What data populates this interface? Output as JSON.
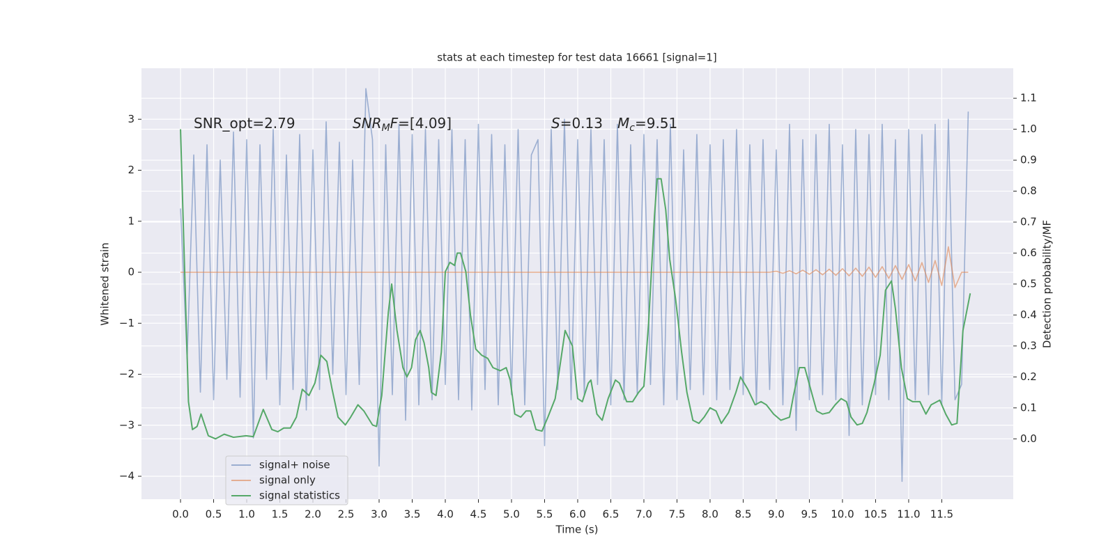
{
  "chart_data": {
    "type": "line",
    "title": "stats at each timestep for test data 16661 [signal=1]",
    "xlabel": "Time (s)",
    "ylabel": "Whitened strain",
    "y2label": "Detection probability/MF",
    "annotations": [
      [
        "SNR_opt=2.79"
      ],
      [
        "SNR",
        "M",
        "F",
        "=[4.09]"
      ],
      [
        "S",
        "=0.13"
      ],
      [
        "M",
        "c",
        "=9.51"
      ]
    ],
    "x": [
      0.0,
      0.1,
      0.2,
      0.3,
      0.4,
      0.5,
      0.6,
      0.7,
      0.8,
      0.9,
      1.0,
      1.1,
      1.2,
      1.3,
      1.4,
      1.5,
      1.6,
      1.7,
      1.8,
      1.9,
      2.0,
      2.1,
      2.2,
      2.3,
      2.4,
      2.5,
      2.6,
      2.7,
      2.8,
      2.9,
      3.0,
      3.1,
      3.2,
      3.3,
      3.4,
      3.5,
      3.6,
      3.7,
      3.8,
      3.9,
      4.0,
      4.1,
      4.2,
      4.3,
      4.4,
      4.5,
      4.6,
      4.7,
      4.8,
      4.9,
      5.0,
      5.1,
      5.2,
      5.3,
      5.4,
      5.5,
      5.6,
      5.7,
      5.8,
      5.9,
      6.0,
      6.1,
      6.2,
      6.3,
      6.4,
      6.5,
      6.6,
      6.7,
      6.8,
      6.9,
      7.0,
      7.1,
      7.2,
      7.3,
      7.4,
      7.5,
      7.6,
      7.7,
      7.8,
      7.9,
      8.0,
      8.1,
      8.2,
      8.3,
      8.4,
      8.5,
      8.6,
      8.7,
      8.8,
      8.9,
      9.0,
      9.1,
      9.2,
      9.3,
      9.4,
      9.5,
      9.6,
      9.7,
      9.8,
      9.9,
      10.0,
      10.1,
      10.2,
      10.3,
      10.4,
      10.5,
      10.6,
      10.7,
      10.8,
      10.9,
      11.0,
      11.1,
      11.2,
      11.3,
      11.4,
      11.5,
      11.6,
      11.7,
      11.8,
      11.9
    ],
    "series": [
      {
        "name": "signal+ noise",
        "color": "#4c72b0",
        "opacity": 0.5,
        "values": [
          1.25,
          -1.7,
          2.3,
          -2.35,
          2.5,
          -2.5,
          2.2,
          -2.1,
          2.75,
          -2.45,
          2.6,
          -3.25,
          2.5,
          -2.1,
          2.8,
          -2.6,
          2.3,
          -2.3,
          2.7,
          -2.7,
          2.4,
          -2.3,
          2.95,
          -2.0,
          2.55,
          -2.4,
          2.2,
          -2.2,
          3.6,
          2.6,
          -3.8,
          2.5,
          -2.4,
          2.9,
          -2.9,
          2.7,
          -2.6,
          2.8,
          -2.5,
          2.6,
          -2.2,
          2.8,
          -2.5,
          2.6,
          -2.7,
          2.9,
          -2.3,
          2.7,
          -2.6,
          2.5,
          -2.4,
          2.8,
          -2.6,
          2.3,
          2.6,
          -3.4,
          2.8,
          -2.3,
          3.0,
          -2.5,
          2.6,
          -2.4,
          2.8,
          -2.2,
          2.6,
          -2.6,
          2.9,
          -2.5,
          2.5,
          -2.4,
          2.7,
          -2.2,
          2.6,
          -2.6,
          2.9,
          -2.5,
          2.4,
          -2.3,
          2.7,
          -2.4,
          2.5,
          -2.5,
          2.6,
          -2.3,
          2.8,
          -2.4,
          2.5,
          -2.6,
          2.6,
          -2.3,
          2.4,
          -2.6,
          2.9,
          -3.1,
          2.6,
          -2.5,
          2.7,
          -2.4,
          2.9,
          -2.5,
          2.5,
          -3.2,
          2.8,
          -2.6,
          2.7,
          -2.4,
          2.9,
          -2.5,
          2.6,
          -4.1,
          2.8,
          -2.5,
          2.7,
          -2.4,
          2.9,
          -2.6,
          3.0,
          -2.5,
          -2.2,
          3.15
        ]
      },
      {
        "name": "signal only",
        "color": "#dd8452",
        "opacity": 0.6,
        "values": [
          0,
          0,
          0,
          0,
          0,
          0,
          0,
          0,
          0,
          0,
          0,
          0,
          0,
          0,
          0,
          0,
          0,
          0,
          0,
          0,
          0,
          0,
          0,
          0,
          0,
          0,
          0,
          0,
          0,
          0,
          0,
          0,
          0,
          0,
          0,
          0,
          0,
          0,
          0,
          0,
          0,
          0,
          0,
          0,
          0,
          0,
          0,
          0,
          0,
          0,
          0,
          0,
          0,
          0,
          0,
          0,
          0,
          0,
          0,
          0,
          0,
          0,
          0,
          0,
          0,
          0,
          0,
          0,
          0,
          0,
          0,
          0,
          0,
          0,
          0,
          0,
          0,
          0,
          0,
          0,
          0,
          0,
          0,
          0,
          0,
          0,
          0,
          0,
          0,
          0,
          0.02,
          -0.02,
          0.03,
          -0.03,
          0.04,
          -0.04,
          0.05,
          -0.05,
          0.06,
          -0.06,
          0.07,
          -0.07,
          0.08,
          -0.08,
          0.1,
          -0.1,
          0.11,
          -0.12,
          0.13,
          -0.14,
          0.15,
          -0.17,
          0.19,
          -0.2,
          0.23,
          -0.26,
          0.5,
          -0.3,
          0,
          0
        ]
      },
      {
        "name": "signal statistics",
        "color": "#55a868",
        "opacity": 1,
        "axis": "y2",
        "x": [
          0.0,
          0.12,
          0.18,
          0.25,
          0.31,
          0.42,
          0.53,
          0.66,
          0.8,
          0.99,
          1.1,
          1.25,
          1.38,
          1.47,
          1.56,
          1.66,
          1.75,
          1.84,
          1.94,
          2.03,
          2.12,
          2.21,
          2.29,
          2.38,
          2.49,
          2.57,
          2.68,
          2.77,
          2.9,
          2.96,
          3.04,
          3.14,
          3.19,
          3.27,
          3.36,
          3.42,
          3.49,
          3.55,
          3.62,
          3.68,
          3.75,
          3.79,
          3.86,
          3.94,
          4.0,
          4.07,
          4.14,
          4.18,
          4.23,
          4.31,
          4.38,
          4.46,
          4.55,
          4.64,
          4.72,
          4.83,
          4.92,
          4.98,
          5.05,
          5.14,
          5.22,
          5.29,
          5.37,
          5.46,
          5.55,
          5.66,
          5.81,
          5.92,
          6.0,
          6.07,
          6.16,
          6.2,
          6.29,
          6.37,
          6.46,
          6.57,
          6.63,
          6.74,
          6.83,
          6.92,
          7.0,
          7.07,
          7.16,
          7.2,
          7.26,
          7.33,
          7.39,
          7.48,
          7.57,
          7.65,
          7.74,
          7.83,
          7.91,
          8.0,
          8.09,
          8.17,
          8.28,
          8.39,
          8.46,
          8.57,
          8.68,
          8.77,
          8.85,
          8.96,
          9.07,
          9.2,
          9.26,
          9.35,
          9.43,
          9.52,
          9.61,
          9.7,
          9.8,
          9.89,
          9.98,
          10.06,
          10.13,
          10.22,
          10.3,
          10.37,
          10.48,
          10.57,
          10.65,
          10.74,
          10.8,
          10.89,
          10.98,
          11.06,
          11.17,
          11.26,
          11.34,
          11.47,
          11.56,
          11.65,
          11.73,
          11.82,
          11.93
        ],
        "values": [
          1.0,
          0.12,
          0.03,
          0.04,
          0.08,
          0.01,
          0.0,
          0.015,
          0.005,
          0.01,
          0.007,
          0.095,
          0.03,
          0.023,
          0.035,
          0.035,
          0.07,
          0.16,
          0.14,
          0.18,
          0.27,
          0.25,
          0.16,
          0.07,
          0.045,
          0.07,
          0.11,
          0.09,
          0.045,
          0.04,
          0.14,
          0.41,
          0.5,
          0.35,
          0.23,
          0.2,
          0.23,
          0.32,
          0.35,
          0.31,
          0.23,
          0.15,
          0.14,
          0.28,
          0.54,
          0.57,
          0.56,
          0.6,
          0.6,
          0.54,
          0.4,
          0.29,
          0.27,
          0.26,
          0.23,
          0.22,
          0.23,
          0.19,
          0.08,
          0.07,
          0.09,
          0.09,
          0.03,
          0.025,
          0.07,
          0.13,
          0.35,
          0.3,
          0.13,
          0.12,
          0.18,
          0.19,
          0.08,
          0.06,
          0.13,
          0.19,
          0.18,
          0.12,
          0.12,
          0.15,
          0.17,
          0.37,
          0.72,
          0.84,
          0.84,
          0.74,
          0.58,
          0.45,
          0.28,
          0.15,
          0.06,
          0.05,
          0.07,
          0.1,
          0.09,
          0.05,
          0.085,
          0.15,
          0.2,
          0.16,
          0.11,
          0.12,
          0.11,
          0.08,
          0.06,
          0.07,
          0.14,
          0.23,
          0.23,
          0.16,
          0.09,
          0.08,
          0.085,
          0.11,
          0.13,
          0.12,
          0.07,
          0.045,
          0.05,
          0.085,
          0.18,
          0.27,
          0.48,
          0.51,
          0.42,
          0.23,
          0.13,
          0.12,
          0.12,
          0.08,
          0.11,
          0.125,
          0.08,
          0.045,
          0.05,
          0.35,
          0.47
        ]
      }
    ],
    "xlim": [
      -0.59,
      12.58
    ],
    "ylim": [
      -4.45,
      4.0
    ],
    "y2lim": [
      -0.195,
      1.197
    ],
    "xticks": [
      {
        "value": 0,
        "label": "0.0"
      },
      0.5,
      {
        "value": 1,
        "label": "1.0"
      },
      1.5,
      {
        "value": 2,
        "label": "2.0"
      },
      2.5,
      {
        "value": 3,
        "label": "3.0"
      },
      3.5,
      {
        "value": 4,
        "label": "4.0"
      },
      4.5,
      {
        "value": 5,
        "label": "5.0"
      },
      5.5,
      {
        "value": 6,
        "label": "6.0"
      },
      6.5,
      {
        "value": 7,
        "label": "7.0"
      },
      7.5,
      {
        "value": 8,
        "label": "8.0"
      },
      8.5,
      {
        "value": 9,
        "label": "9.0"
      },
      9.5,
      {
        "value": 10,
        "label": "10.0"
      },
      10.5,
      {
        "value": 11,
        "label": "11.0"
      },
      11.5
    ],
    "yticks": [
      {
        "value": -4,
        "label": "−4"
      },
      {
        "value": -3,
        "label": "−3"
      },
      {
        "value": -2,
        "label": "−2"
      },
      {
        "value": -1,
        "label": "−1"
      },
      0,
      1,
      2,
      3
    ],
    "y2ticks": [
      {
        "value": 0,
        "label": "0.0"
      },
      0.1,
      0.2,
      0.3,
      0.4,
      0.5,
      0.6,
      0.7,
      0.8,
      0.9,
      {
        "value": 1,
        "label": "1.0"
      },
      1.1
    ],
    "grid": true,
    "legend": "lower left"
  }
}
